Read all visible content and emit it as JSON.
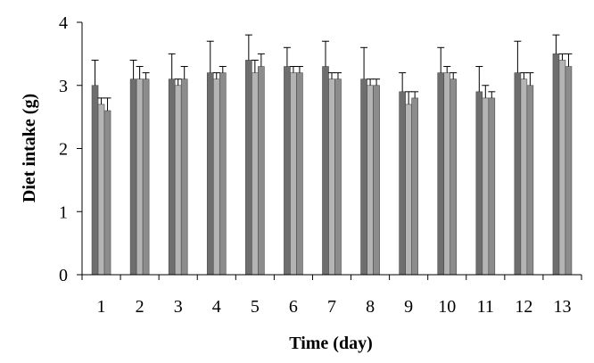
{
  "chart_data": {
    "type": "bar",
    "title": "",
    "xlabel": "Time (day)",
    "ylabel": "Diet intake (g)",
    "ylim": [
      0,
      4
    ],
    "yticks": [
      0,
      1,
      2,
      3,
      4
    ],
    "grid": false,
    "legend": "none",
    "categories": [
      "1",
      "2",
      "3",
      "4",
      "5",
      "6",
      "7",
      "8",
      "9",
      "10",
      "11",
      "12",
      "13"
    ],
    "series": [
      {
        "color": "#6e6e6e",
        "values": [
          3.0,
          3.1,
          3.1,
          3.2,
          3.4,
          3.3,
          3.3,
          3.1,
          2.9,
          3.2,
          2.9,
          3.2,
          3.5
        ],
        "errors": [
          0.4,
          0.3,
          0.4,
          0.5,
          0.4,
          0.3,
          0.4,
          0.5,
          0.3,
          0.4,
          0.4,
          0.5,
          0.3
        ]
      },
      {
        "color": "#b4b4b4",
        "values": [
          2.7,
          3.1,
          3.0,
          3.1,
          3.2,
          3.2,
          3.1,
          3.0,
          2.7,
          3.2,
          2.8,
          3.1,
          3.4
        ],
        "errors": [
          0.1,
          0.2,
          0.1,
          0.1,
          0.2,
          0.1,
          0.1,
          0.1,
          0.2,
          0.1,
          0.2,
          0.1,
          0.1
        ]
      },
      {
        "color": "#8c8c8c",
        "values": [
          2.6,
          3.1,
          3.1,
          3.2,
          3.3,
          3.2,
          3.1,
          3.0,
          2.8,
          3.1,
          2.8,
          3.0,
          3.3
        ],
        "errors": [
          0.2,
          0.1,
          0.2,
          0.1,
          0.2,
          0.1,
          0.1,
          0.1,
          0.1,
          0.1,
          0.1,
          0.2,
          0.2
        ]
      }
    ]
  }
}
